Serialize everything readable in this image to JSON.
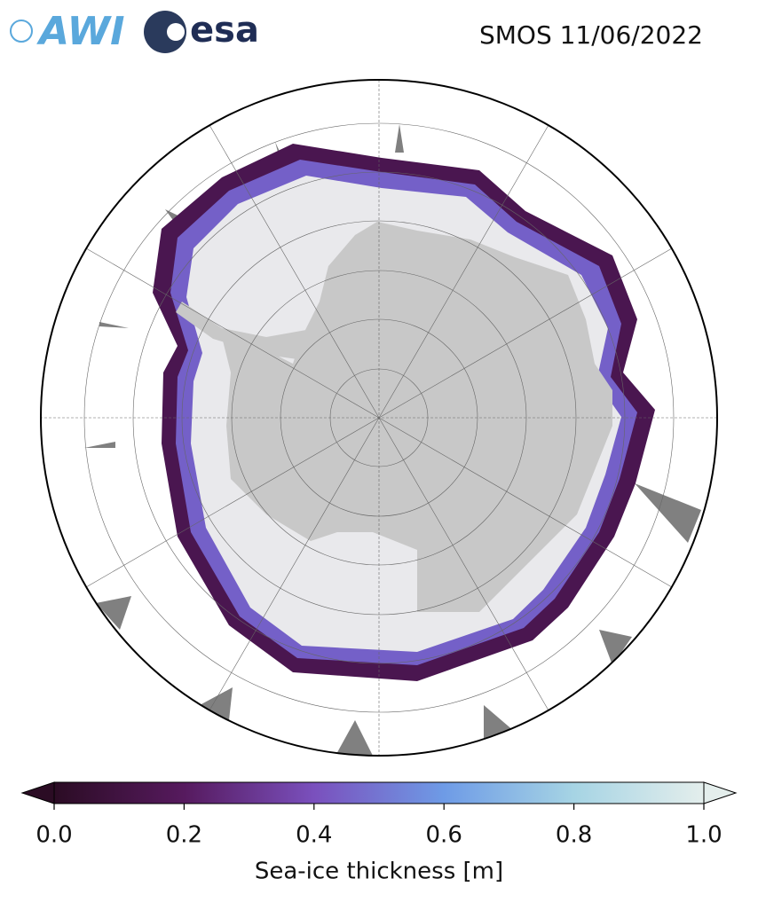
{
  "header": {
    "logos": [
      "AWI",
      "esa"
    ],
    "title": "SMOS 11/06/2022"
  },
  "colorbar": {
    "label": "Sea-ice thickness [m]",
    "lim": [
      0,
      1
    ],
    "ticks": [
      {
        "value": 0,
        "label": "0.0"
      },
      0.2,
      0.4,
      0.6,
      0.8,
      {
        "value": 1,
        "label": "1.0"
      }
    ],
    "colors": [
      "#2b0c24",
      "#561a5e",
      "#7a50bd",
      "#6e9be6",
      "#a6d4e4",
      "#e4eeec"
    ]
  }
}
